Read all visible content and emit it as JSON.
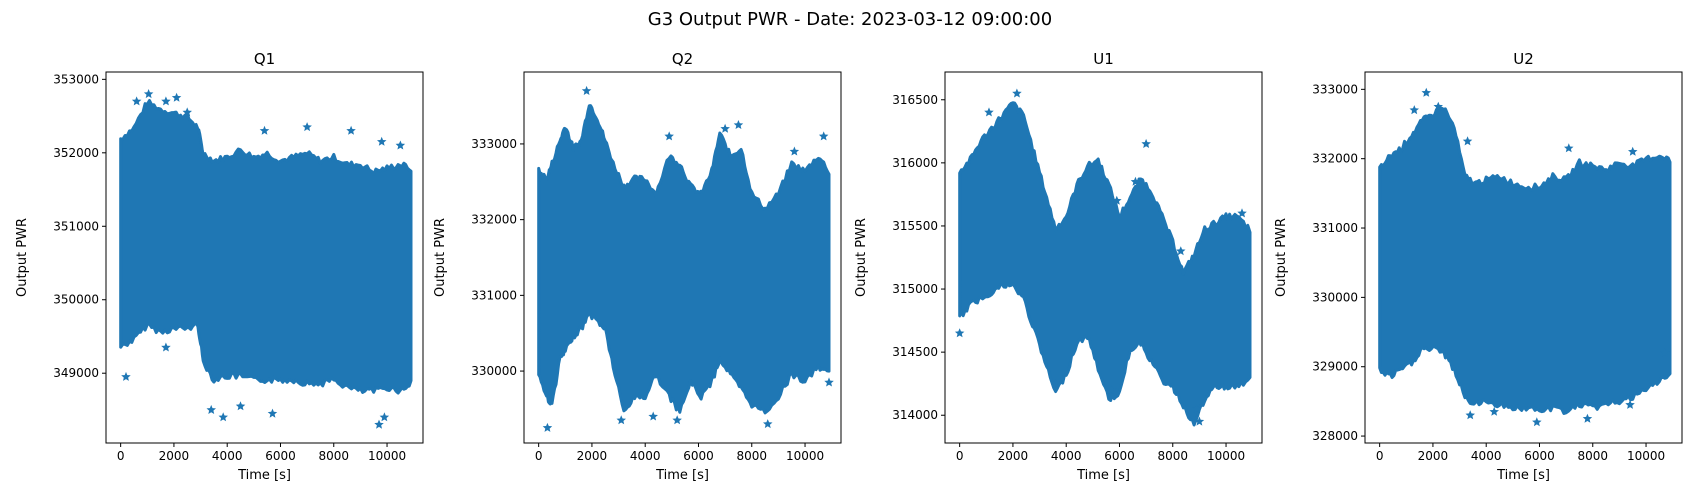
{
  "figure": {
    "suptitle": "G3 Output PWR - Date: 2023-03-12 09:00:00",
    "marker_color": "#1f77b4",
    "marker": "star"
  },
  "chart_data": [
    {
      "type": "scatter",
      "title": "Q1",
      "xlabel": "Time [s]",
      "ylabel": "Output PWR",
      "xlim": [
        -550,
        11350
      ],
      "ylim": [
        348050,
        353100
      ],
      "xticks": [
        0,
        2000,
        4000,
        6000,
        8000,
        10000
      ],
      "xtick_labels": [
        "0",
        "2000",
        "4000",
        "6000",
        "8000",
        "10000"
      ],
      "yticks": [
        349000,
        350000,
        351000,
        352000,
        353000
      ],
      "ytick_labels": [
        "349000",
        "350000",
        "351000",
        "352000",
        "353000"
      ],
      "envelope": {
        "x": [
          0,
          500,
          1000,
          1500,
          2000,
          2500,
          2900,
          3100,
          3500,
          4000,
          4500,
          5000,
          5500,
          6000,
          6500,
          7000,
          7500,
          8000,
          8500,
          9000,
          9500,
          10000,
          10500,
          10900
        ],
        "upper": [
          352150,
          352300,
          352650,
          352550,
          352500,
          352450,
          352300,
          351950,
          351850,
          351900,
          352000,
          351900,
          351950,
          351850,
          351900,
          351950,
          351850,
          351900,
          351800,
          351800,
          351700,
          351750,
          351800,
          351750
        ],
        "lower": [
          349400,
          349500,
          349700,
          349600,
          349650,
          349650,
          349700,
          349200,
          348950,
          349000,
          349000,
          348950,
          348950,
          348950,
          348950,
          348900,
          348900,
          348950,
          348850,
          348800,
          348800,
          348850,
          348800,
          348900
        ]
      },
      "outliers": [
        {
          "x": 1050,
          "y": 352800
        },
        {
          "x": 1700,
          "y": 352700
        },
        {
          "x": 2100,
          "y": 352750
        },
        {
          "x": 2500,
          "y": 352550
        },
        {
          "x": 600,
          "y": 352700
        },
        {
          "x": 200,
          "y": 348950
        },
        {
          "x": 1700,
          "y": 349350
        },
        {
          "x": 3850,
          "y": 348400
        },
        {
          "x": 5400,
          "y": 352300
        },
        {
          "x": 7000,
          "y": 352350
        },
        {
          "x": 8650,
          "y": 352300
        },
        {
          "x": 9800,
          "y": 352150
        },
        {
          "x": 10500,
          "y": 352100
        },
        {
          "x": 5700,
          "y": 348450
        },
        {
          "x": 9700,
          "y": 348300
        },
        {
          "x": 9900,
          "y": 348400
        },
        {
          "x": 3400,
          "y": 348500
        },
        {
          "x": 4500,
          "y": 348550
        }
      ]
    },
    {
      "type": "scatter",
      "title": "Q2",
      "xlabel": "Time [s]",
      "ylabel": "Output PWR",
      "xlim": [
        -550,
        11350
      ],
      "ylim": [
        329050,
        333950
      ],
      "xticks": [
        0,
        2000,
        4000,
        6000,
        8000,
        10000
      ],
      "xtick_labels": [
        "0",
        "2000",
        "4000",
        "6000",
        "8000",
        "10000"
      ],
      "yticks": [
        330000,
        331000,
        332000,
        333000
      ],
      "ytick_labels": [
        "330000",
        "331000",
        "332000",
        "333000"
      ],
      "envelope": {
        "x": [
          0,
          300,
          500,
          800,
          1000,
          1300,
          1600,
          1900,
          2200,
          2500,
          2800,
          3200,
          3600,
          4000,
          4400,
          4900,
          5300,
          5700,
          6100,
          6500,
          6800,
          7200,
          7600,
          8000,
          8500,
          9000,
          9500,
          10000,
          10500,
          10900
        ],
        "upper": [
          332600,
          332500,
          332700,
          333000,
          333200,
          332900,
          333000,
          333500,
          333300,
          333000,
          332700,
          332400,
          332500,
          332500,
          332300,
          332800,
          332700,
          332400,
          332300,
          332600,
          333100,
          332800,
          332900,
          332300,
          332100,
          332300,
          332700,
          332600,
          332800,
          332600
        ],
        "lower": [
          330000,
          329700,
          329600,
          330200,
          330300,
          330500,
          330600,
          330800,
          330700,
          330600,
          330100,
          329500,
          329700,
          329700,
          330000,
          329700,
          329500,
          329900,
          329700,
          329900,
          330200,
          330000,
          329800,
          329600,
          329500,
          329700,
          330000,
          329900,
          330100,
          330000
        ]
      },
      "outliers": [
        {
          "x": 330,
          "y": 329250
        },
        {
          "x": 1800,
          "y": 333700
        },
        {
          "x": 4900,
          "y": 333100
        },
        {
          "x": 7000,
          "y": 333200
        },
        {
          "x": 7500,
          "y": 333250
        },
        {
          "x": 10700,
          "y": 333100
        },
        {
          "x": 3100,
          "y": 329350
        },
        {
          "x": 8600,
          "y": 329300
        },
        {
          "x": 5200,
          "y": 329350
        },
        {
          "x": 10900,
          "y": 329850
        },
        {
          "x": 9600,
          "y": 332900
        },
        {
          "x": 4300,
          "y": 329400
        }
      ]
    },
    {
      "type": "scatter",
      "title": "U1",
      "xlabel": "Time [s]",
      "ylabel": "Output PWR",
      "xlim": [
        -550,
        11350
      ],
      "ylim": [
        313780,
        316720
      ],
      "xticks": [
        0,
        2000,
        4000,
        6000,
        8000,
        10000
      ],
      "xtick_labels": [
        "0",
        "2000",
        "4000",
        "6000",
        "8000",
        "10000"
      ],
      "yticks": [
        314000,
        314500,
        315000,
        315500,
        316000,
        316500
      ],
      "ytick_labels": [
        "314000",
        "314500",
        "315000",
        "315500",
        "316000",
        "316500"
      ],
      "envelope": {
        "x": [
          0,
          400,
          800,
          1200,
          1600,
          2000,
          2400,
          2800,
          3200,
          3600,
          4000,
          4400,
          4800,
          5200,
          5600,
          6000,
          6400,
          6800,
          7200,
          7600,
          8000,
          8400,
          8800,
          9200,
          9600,
          10000,
          10400,
          10900
        ],
        "upper": [
          315900,
          316000,
          316150,
          316250,
          316350,
          316450,
          316350,
          316050,
          315750,
          315450,
          315550,
          315800,
          315950,
          316000,
          315800,
          315550,
          315700,
          315850,
          315750,
          315550,
          315350,
          315100,
          315250,
          315450,
          315500,
          315550,
          315550,
          315450
        ],
        "lower": [
          314800,
          314900,
          314950,
          315000,
          315050,
          315050,
          314950,
          314700,
          314450,
          314200,
          314350,
          314600,
          314650,
          314400,
          314150,
          314200,
          314550,
          314600,
          314450,
          314300,
          314250,
          314100,
          313950,
          314150,
          314250,
          314250,
          314250,
          314300
        ]
      },
      "outliers": [
        {
          "x": 2150,
          "y": 316550
        },
        {
          "x": 1100,
          "y": 316400
        },
        {
          "x": 7000,
          "y": 316150
        },
        {
          "x": 6600,
          "y": 315850
        },
        {
          "x": 9000,
          "y": 313950
        },
        {
          "x": 3600,
          "y": 314250
        },
        {
          "x": 0,
          "y": 314650
        },
        {
          "x": 5700,
          "y": 314200
        },
        {
          "x": 8900,
          "y": 314050
        },
        {
          "x": 10600,
          "y": 315600
        },
        {
          "x": 8300,
          "y": 315300
        },
        {
          "x": 5900,
          "y": 315700
        }
      ]
    },
    {
      "type": "scatter",
      "title": "U2",
      "xlabel": "Time [s]",
      "ylabel": "Output PWR",
      "xlim": [
        -550,
        11350
      ],
      "ylim": [
        327900,
        333250
      ],
      "xticks": [
        0,
        2000,
        4000,
        6000,
        8000,
        10000
      ],
      "xtick_labels": [
        "0",
        "2000",
        "4000",
        "6000",
        "8000",
        "10000"
      ],
      "yticks": [
        328000,
        329000,
        330000,
        331000,
        332000,
        333000
      ],
      "ytick_labels": [
        "328000",
        "329000",
        "330000",
        "331000",
        "332000",
        "333000"
      ],
      "envelope": {
        "x": [
          0,
          400,
          800,
          1200,
          1600,
          2000,
          2400,
          2800,
          3200,
          3600,
          4000,
          4500,
          5000,
          5500,
          6000,
          6500,
          7000,
          7500,
          8000,
          8500,
          9000,
          9500,
          10000,
          10500,
          10900
        ],
        "upper": [
          331800,
          332000,
          332100,
          332300,
          332500,
          332600,
          332700,
          332400,
          331700,
          331600,
          331650,
          331700,
          331600,
          331550,
          331550,
          331700,
          331650,
          331900,
          331850,
          331800,
          331900,
          331850,
          331950,
          332000,
          331950
        ],
        "lower": [
          329000,
          328900,
          329000,
          329100,
          329300,
          329300,
          329250,
          329000,
          328600,
          328500,
          328550,
          328500,
          328450,
          328450,
          328400,
          328450,
          328400,
          328500,
          328450,
          328500,
          328550,
          328600,
          328700,
          328850,
          328900
        ]
      },
      "outliers": [
        {
          "x": 1750,
          "y": 332950
        },
        {
          "x": 2200,
          "y": 332750
        },
        {
          "x": 1300,
          "y": 332700
        },
        {
          "x": 3300,
          "y": 332250
        },
        {
          "x": 7100,
          "y": 332150
        },
        {
          "x": 9500,
          "y": 332100
        },
        {
          "x": 3400,
          "y": 328300
        },
        {
          "x": 5900,
          "y": 328200
        },
        {
          "x": 7800,
          "y": 328250
        },
        {
          "x": 4300,
          "y": 328350
        },
        {
          "x": 9400,
          "y": 328450
        },
        {
          "x": 10700,
          "y": 329200
        }
      ]
    }
  ]
}
